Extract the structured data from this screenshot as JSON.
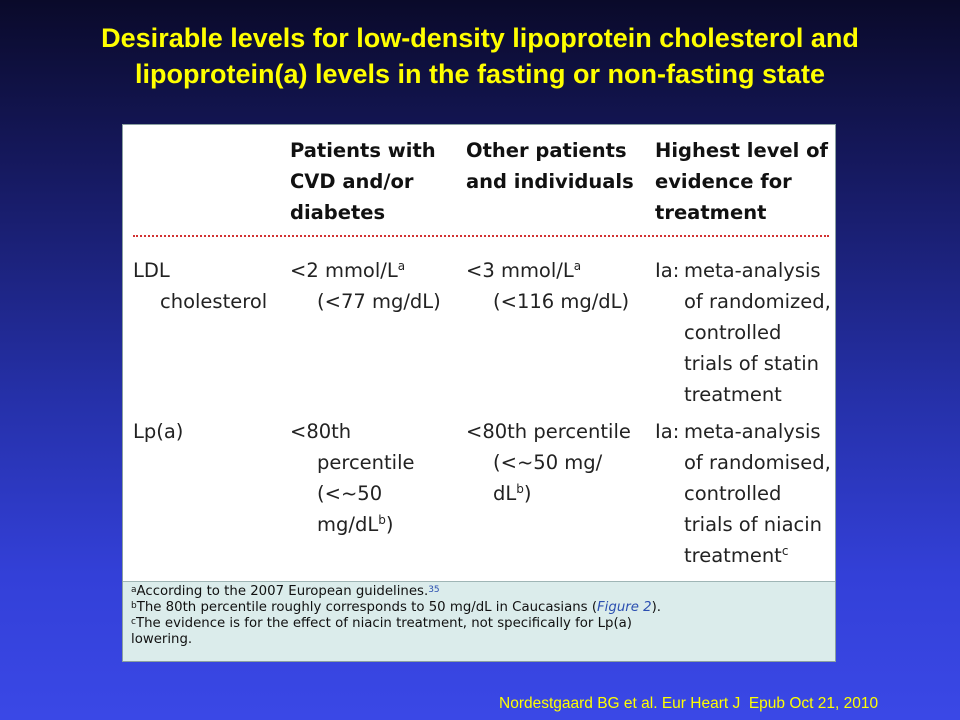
{
  "slide": {
    "title_line1": "Desirable levels for low-density lipoprotein cholesterol and",
    "title_line2": "lipoprotein(a) levels in the fasting or non-fasting state",
    "citation": "Nordestgaard BG et al. Eur Heart J  Epub Oct 21, 2010"
  },
  "table": {
    "headers": [
      {
        "lines": []
      },
      {
        "lines": [
          "Patients with",
          "CVD and/or",
          "diabetes"
        ]
      },
      {
        "lines": [
          "Other patients",
          "and individuals"
        ]
      },
      {
        "lines": [
          "Highest level of",
          "evidence for",
          "treatment"
        ]
      }
    ],
    "rows": [
      {
        "label_line1": "LDL",
        "label_line2": "cholesterol",
        "cvd": {
          "line1": "<2 mmol/L",
          "sup1": "a",
          "line2": "(<77 mg/dL)"
        },
        "other": {
          "line1": "<3 mmol/L",
          "sup1": "a",
          "line2": "(<116 mg/dL)"
        },
        "evidence": {
          "prefix": "Ia:",
          "lines": [
            "meta-analysis",
            "of randomized,",
            "controlled",
            "trials of statin",
            "treatment"
          ]
        }
      },
      {
        "label_line1": "Lp(a)",
        "cvd": {
          "line1": "<80th",
          "line2": "percentile",
          "line3": "(<~50",
          "line4": "mg/dL",
          "sup4": "b",
          "line4_end": ")"
        },
        "other": {
          "line1": "<80th percentile",
          "line2": "(<~50 mg/",
          "line3": "dL",
          "sup3": "b",
          "line3_end": ")"
        },
        "evidence": {
          "prefix": "Ia:",
          "lines": [
            "meta-analysis",
            "of randomised,",
            "controlled",
            "trials of niacin",
            "treatment"
          ],
          "last_sup": "c"
        }
      }
    ],
    "footnotes": {
      "a": {
        "marker": "a",
        "text": "According to the 2007 European guidelines.",
        "ref": "35"
      },
      "b": {
        "marker": "b",
        "text_before": "The 80th percentile roughly corresponds to 50 mg/dL in Caucasians (",
        "link": "Figure 2",
        "text_after": ")."
      },
      "c": {
        "marker": "c",
        "text_line1": "The evidence is for the effect of niacin treatment, not specifically for Lp(a)",
        "text_line2": "lowering."
      }
    }
  }
}
